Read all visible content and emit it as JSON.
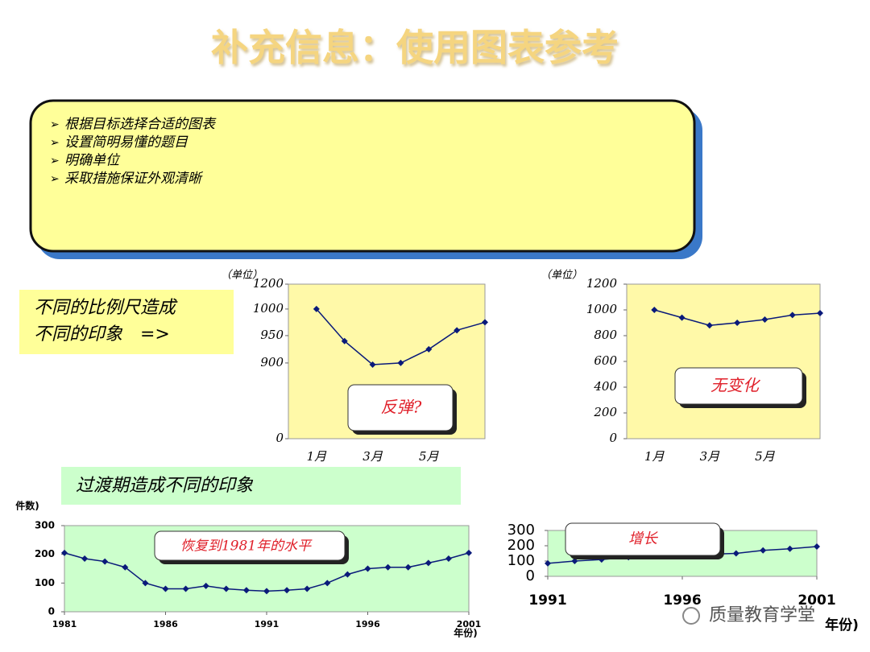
{
  "title": "补充信息：使用图表参考",
  "bullets": [
    "根据目标选择合适的图表",
    "设置简明易懂的题目",
    "明确单位",
    "采取措施保证外观清晰"
  ],
  "scale_note": [
    "不同的比例尺造成",
    "不同的印象　=>"
  ],
  "transition_note": "过渡期造成不同的印象",
  "watermark": "质量教育学堂",
  "chart_data": [
    {
      "type": "line",
      "y_label": "（单位）",
      "annotation": "反弹?",
      "color": "#0a1a7a",
      "categories": [
        "1月",
        null,
        "3月",
        null,
        "5月",
        null,
        null
      ],
      "values": [
        1000,
        940,
        880,
        900,
        925,
        960,
        975
      ],
      "ylim": [
        0,
        1200
      ],
      "yticks": [
        0,
        900,
        950,
        1000,
        1200
      ]
    },
    {
      "type": "line",
      "y_label": "（单位）",
      "annotation": "无变化",
      "color": "#0a1a7a",
      "categories": [
        "1月",
        null,
        "3月",
        null,
        "5月",
        null,
        null
      ],
      "values": [
        1000,
        940,
        880,
        900,
        925,
        960,
        975
      ],
      "ylim": [
        0,
        1200
      ],
      "yticks": [
        0,
        200,
        400,
        600,
        800,
        1000,
        1200
      ]
    },
    {
      "type": "line",
      "y_label": "件数)",
      "x_label": "年份)",
      "annotation": "恢复到1981年的水平",
      "color": "#0a1a7a",
      "x": [
        1981,
        1982,
        1983,
        1984,
        1985,
        1986,
        1987,
        1988,
        1989,
        1990,
        1991,
        1992,
        1993,
        1994,
        1995,
        1996,
        1997,
        1998,
        1999,
        2000,
        2001
      ],
      "values": [
        205,
        185,
        175,
        155,
        100,
        80,
        80,
        90,
        80,
        75,
        72,
        75,
        80,
        100,
        130,
        150,
        155,
        155,
        170,
        185,
        205
      ],
      "xlim": [
        1981,
        2001
      ],
      "xticks": [
        1981,
        1986,
        1991,
        1996,
        2001
      ],
      "ylim": [
        0,
        300
      ],
      "yticks": [
        0,
        100,
        200,
        300
      ]
    },
    {
      "type": "line",
      "x_label": "年份)",
      "annotation": "增长",
      "color": "#0a1a7a",
      "x": [
        1991,
        1992,
        1993,
        1994,
        1995,
        1996,
        1997,
        1998,
        1999,
        2000,
        2001
      ],
      "values": [
        85,
        100,
        110,
        125,
        135,
        140,
        145,
        150,
        170,
        180,
        195
      ],
      "xlim": [
        1991,
        2001
      ],
      "xticks": [
        1991,
        1996,
        2001
      ],
      "ylim": [
        0,
        300
      ],
      "yticks": [
        0,
        100,
        200,
        300
      ]
    }
  ]
}
